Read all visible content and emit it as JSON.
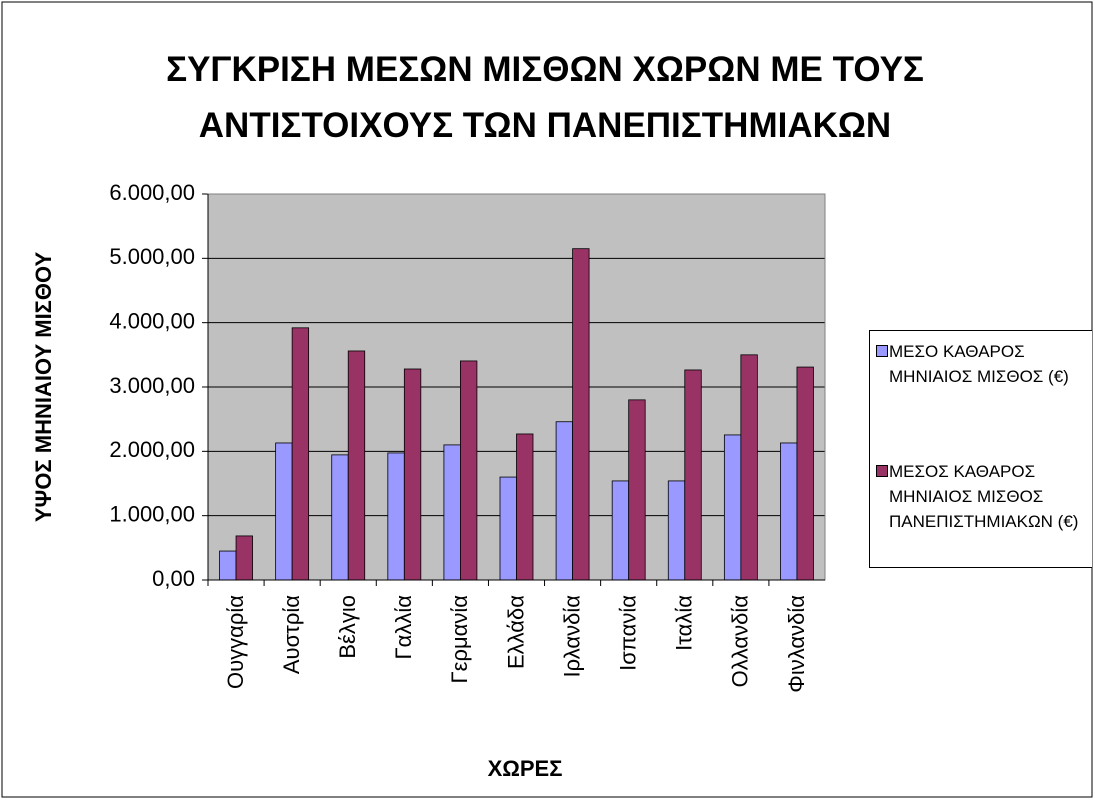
{
  "chart_data": {
    "type": "bar",
    "title": "ΣΥΓΚΡΙΣΗ ΜΕΣΩΝ ΜΙΣΘΩΝ ΧΩΡΩΝ ΜΕ ΤΟΥΣ ΑΝΤΙΣΤΟΙΧΟΥΣ ΤΩΝ ΠΑΝΕΠΙΣΤΗΜΙΑΚΩΝ",
    "x_label": "ΧΩΡΕΣ",
    "y_label": "ΥΨΟΣ ΜΗΝΙΑΙΟΥ ΜΙΣΘΟΥ",
    "categories": [
      "Ουγγαρία",
      "Αυστρία",
      "Βέλγιο",
      "Γαλλία",
      "Γερμανία",
      "Ελλάδα",
      "Ιρλανδία",
      "Ισπανία",
      "Ιταλία",
      "Ολλανδία",
      "Φινλανδία"
    ],
    "series": [
      {
        "name": "ΜΕΣΟ ΚΑΘΑΡΟΣ ΜΗΝΙΑΙΟΣ ΜΙΣΘΟΣ (€)",
        "color": "#9999ff",
        "values": [
          450,
          2130,
          1945,
          1975,
          2100,
          1600,
          2460,
          1540,
          1540,
          2255,
          2130
        ]
      },
      {
        "name": "ΜΕΣΟΣ ΚΑΘΑΡΟΣ ΜΗΝΙΑΙΟΣ ΜΙΣΘΟΣ ΠΑΝΕΠΙΣΤΗΜΙΑΚΩΝ (€)",
        "color": "#993366",
        "values": [
          685,
          3920,
          3560,
          3280,
          3405,
          2270,
          5150,
          2800,
          3265,
          3500,
          3310
        ]
      }
    ],
    "ylim": [
      0,
      6000
    ],
    "yticks": [
      {
        "value": 0,
        "label": "0,00"
      },
      {
        "value": 1000,
        "label": "1.000,00"
      },
      {
        "value": 2000,
        "label": "2.000,00"
      },
      {
        "value": 3000,
        "label": "3.000,00"
      },
      {
        "value": 4000,
        "label": "4.000,00"
      },
      {
        "value": 5000,
        "label": "5.000,00"
      },
      {
        "value": 6000,
        "label": "6.000,00"
      }
    ],
    "grid": true,
    "legend": "right"
  }
}
